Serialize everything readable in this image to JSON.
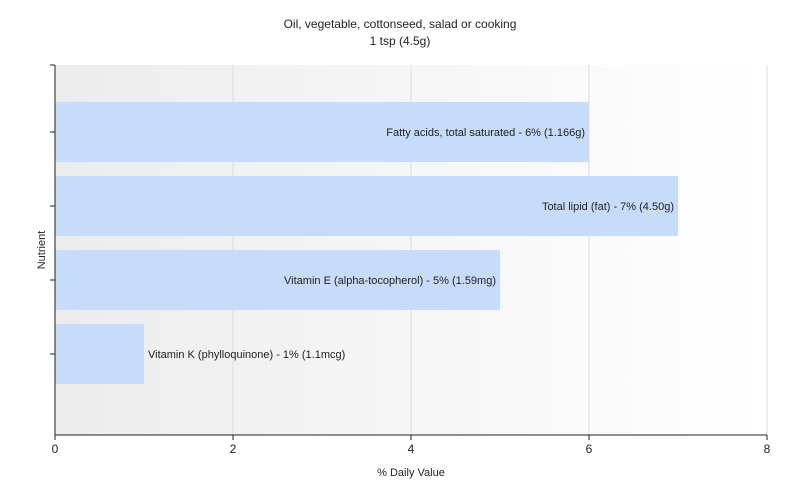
{
  "chart_data": {
    "type": "bar",
    "orientation": "horizontal",
    "title": "Oil, vegetable, cottonseed, salad or cooking",
    "subtitle": "1 tsp (4.5g)",
    "xlabel": "% Daily Value",
    "ylabel": "Nutrient",
    "xlim": [
      0,
      8
    ],
    "xticks": [
      "0",
      "2",
      "4",
      "6",
      "8"
    ],
    "grid": true,
    "legend": "none",
    "bar_color": "#c6dcfa",
    "categories": [
      "Fatty acids, total saturated",
      "Total lipid (fat)",
      "Vitamin E (alpha-tocopherol)",
      "Vitamin K (phylloquinone)"
    ],
    "values": [
      6,
      7,
      5,
      1
    ],
    "data_labels": [
      "Fatty acids, total saturated - 6% (1.166g)",
      "Total lipid (fat) - 7% (4.50g)",
      "Vitamin E (alpha-tocopherol) - 5% (1.59mg)",
      "Vitamin K (phylloquinone) - 1% (1.1mcg)"
    ]
  }
}
